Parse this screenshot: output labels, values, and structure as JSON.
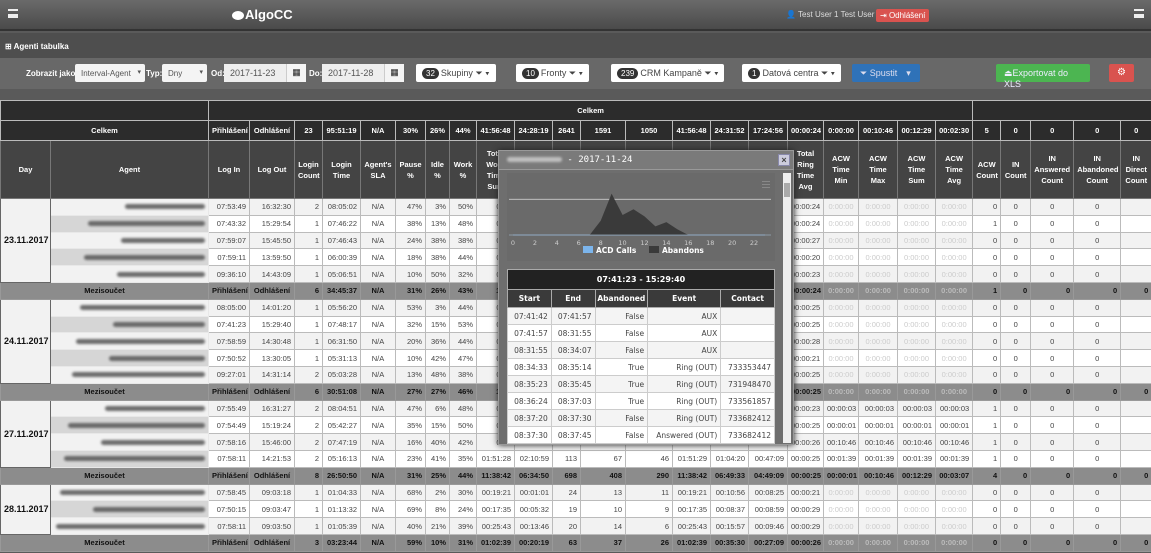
{
  "app": {
    "brand": "AlgoCC",
    "user": "Test User 1 Test User 1",
    "logout_label": "Odhlášení",
    "section_title": "Agenti tabulka"
  },
  "toolbar": {
    "display_as_label": "Zobrazit jako:",
    "display_as_value": "Interval-Agent",
    "type_label": "Typ:",
    "type_value": "Dny",
    "from_label": "Od:",
    "from_value": "2017-11-23",
    "to_label": "Do:",
    "to_value": "2017-11-28",
    "groups": {
      "count": "32",
      "label": "Skupiny"
    },
    "queues": {
      "count": "10",
      "label": "Fronty"
    },
    "crm": {
      "count": "239",
      "label": "CRM Kampaně"
    },
    "datacenters": {
      "count": "1",
      "label": "Datová centra"
    },
    "run_label": "Spustit",
    "export_label": "Exportovat do XLS",
    "colors": {
      "run": "#2f72b8",
      "export": "#4cb551",
      "danger": "#d9534f"
    }
  },
  "table": {
    "top_header": "Celkem",
    "totals_label": "Celkem",
    "totals": [
      "Přihlášení",
      "Odhlášení",
      "23",
      "95:51:19",
      "N/A",
      "30%",
      "26%",
      "44%",
      "41:56:48",
      "24:28:19",
      "2641",
      "1591",
      "1050",
      "41:56:48",
      "24:31:52",
      "17:24:56",
      "00:00:24",
      "0:00:00",
      "00:10:46",
      "00:12:29",
      "00:02:30",
      "5",
      "0",
      "0",
      "0",
      "0"
    ],
    "columns": [
      "Day",
      "Agent",
      "Log In",
      "Log Out",
      "Login Count",
      "Login Time",
      "Agent's SLA",
      "Pause %",
      "Idle %",
      "Work %",
      "Total Work Time Sum",
      "",
      "",
      "",
      "",
      "",
      "",
      "",
      "Total Ring Time Avg",
      "ACW Time Min",
      "ACW Time Max",
      "ACW Time Sum",
      "ACW Time Avg",
      "ACW Count",
      "IN Count",
      "IN Answered Count",
      "IN Abandoned Count",
      "IN Direct Count"
    ],
    "days": [
      {
        "date": "23.11.2017",
        "rows": [
          [
            "07:53:49",
            "16:32:30",
            "2",
            "08:05:02",
            "N/A",
            "47%",
            "3%",
            "50%",
            "04:0",
            "",
            "",
            "",
            "",
            "",
            "",
            "",
            "00:00:24",
            "0:00:00",
            "0:00:00",
            "0:00:00",
            "0:00:00",
            "0",
            "0",
            "0",
            "0",
            ""
          ],
          [
            "07:43:32",
            "15:29:54",
            "1",
            "07:46:22",
            "N/A",
            "38%",
            "13%",
            "48%",
            "03:4",
            "",
            "",
            "",
            "",
            "",
            "",
            "",
            "00:00:24",
            "0:00:00",
            "0:00:00",
            "0:00:00",
            "0:00:00",
            "1",
            "0",
            "0",
            "0",
            ""
          ],
          [
            "07:59:07",
            "15:45:50",
            "1",
            "07:46:43",
            "N/A",
            "24%",
            "38%",
            "38%",
            "02:5",
            "",
            "",
            "",
            "",
            "",
            "",
            "",
            "00:00:27",
            "0:00:00",
            "0:00:00",
            "0:00:00",
            "0:00:00",
            "0",
            "0",
            "0",
            "0",
            ""
          ],
          [
            "07:59:11",
            "13:59:50",
            "1",
            "06:00:39",
            "N/A",
            "18%",
            "38%",
            "44%",
            "02:3",
            "",
            "",
            "",
            "",
            "",
            "",
            "",
            "00:00:20",
            "0:00:00",
            "0:00:00",
            "0:00:00",
            "0:00:00",
            "0",
            "0",
            "0",
            "0",
            ""
          ],
          [
            "09:36:10",
            "14:43:09",
            "1",
            "05:06:51",
            "N/A",
            "10%",
            "50%",
            "32%",
            "01:3",
            "",
            "",
            "",
            "",
            "",
            "",
            "",
            "00:00:23",
            "0:00:00",
            "0:00:00",
            "0:00:00",
            "0:00:00",
            "0",
            "0",
            "0",
            "0",
            ""
          ]
        ],
        "subtotal": {
          "label": "Mezisoučet",
          "values": [
            "Přihlášení",
            "Odhlášení",
            "6",
            "34:45:37",
            "N/A",
            "31%",
            "26%",
            "43%",
            "15:0",
            "",
            "",
            "",
            "",
            "",
            "",
            "",
            "00:00:24",
            "0:00:00",
            "0:00:00",
            "0:00:00",
            "0:00:00",
            "1",
            "0",
            "0",
            "0",
            "0"
          ]
        }
      },
      {
        "date": "24.11.2017",
        "rows": [
          [
            "08:05:00",
            "14:01:20",
            "1",
            "05:56:20",
            "N/A",
            "53%",
            "3%",
            "44%",
            "02:3",
            "",
            "",
            "",
            "",
            "",
            "",
            "",
            "00:00:25",
            "0:00:00",
            "0:00:00",
            "0:00:00",
            "0:00:00",
            "0",
            "0",
            "0",
            "0",
            ""
          ],
          [
            "07:41:23",
            "15:29:40",
            "1",
            "07:48:17",
            "N/A",
            "32%",
            "15%",
            "53%",
            "04:0",
            "",
            "",
            "",
            "",
            "",
            "",
            "",
            "00:00:25",
            "0:00:00",
            "0:00:00",
            "0:00:00",
            "0:00:00",
            "0",
            "0",
            "0",
            "0",
            ""
          ],
          [
            "07:58:59",
            "14:30:48",
            "1",
            "06:31:50",
            "N/A",
            "20%",
            "36%",
            "44%",
            "02:5",
            "",
            "",
            "",
            "",
            "",
            "",
            "",
            "00:00:28",
            "0:00:00",
            "0:00:00",
            "0:00:00",
            "0:00:00",
            "0",
            "0",
            "0",
            "0",
            ""
          ],
          [
            "07:50:52",
            "13:30:05",
            "1",
            "05:31:13",
            "N/A",
            "10%",
            "42%",
            "47%",
            "02:3",
            "",
            "",
            "",
            "",
            "",
            "",
            "",
            "00:00:21",
            "0:00:00",
            "0:00:00",
            "0:00:00",
            "0:00:00",
            "0",
            "0",
            "0",
            "0",
            ""
          ],
          [
            "09:27:01",
            "14:31:14",
            "2",
            "05:03:28",
            "N/A",
            "13%",
            "48%",
            "38%",
            "01:5",
            "",
            "",
            "",
            "",
            "",
            "",
            "",
            "00:00:25",
            "0:00:00",
            "0:00:00",
            "0:00:00",
            "0:00:00",
            "0",
            "0",
            "0",
            "0",
            ""
          ]
        ],
        "subtotal": {
          "label": "Mezisoučet",
          "values": [
            "Přihlášení",
            "Odhlášení",
            "6",
            "30:51:08",
            "N/A",
            "27%",
            "27%",
            "46%",
            "14:1",
            "",
            "",
            "",
            "",
            "",
            "",
            "",
            "00:00:25",
            "0:00:00",
            "0:00:00",
            "0:00:00",
            "0:00:00",
            "0",
            "0",
            "0",
            "0",
            "0"
          ]
        }
      },
      {
        "date": "27.11.2017",
        "rows": [
          [
            "07:55:49",
            "16:31:27",
            "2",
            "08:04:51",
            "N/A",
            "47%",
            "6%",
            "48%",
            "03:5",
            "",
            "",
            "",
            "",
            "",
            "",
            "",
            "00:00:23",
            "00:00:03",
            "00:00:03",
            "00:00:03",
            "00:00:03",
            "1",
            "0",
            "0",
            "0",
            ""
          ],
          [
            "07:54:49",
            "15:19:24",
            "2",
            "05:42:27",
            "N/A",
            "35%",
            "15%",
            "50%",
            "02:5",
            "",
            "",
            "",
            "",
            "",
            "",
            "",
            "00:00:25",
            "00:00:01",
            "00:00:01",
            "00:00:01",
            "00:00:01",
            "1",
            "0",
            "0",
            "0",
            ""
          ],
          [
            "07:58:16",
            "15:46:00",
            "2",
            "07:47:19",
            "N/A",
            "16%",
            "40%",
            "42%",
            "03:0",
            "",
            "",
            "",
            "",
            "",
            "",
            "",
            "00:00:26",
            "00:10:46",
            "00:10:46",
            "00:10:46",
            "00:10:46",
            "1",
            "0",
            "0",
            "0",
            ""
          ],
          [
            "07:58:11",
            "14:21:53",
            "2",
            "05:16:13",
            "N/A",
            "23%",
            "41%",
            "35%",
            "01:51:28",
            "02:10:59",
            "113",
            "67",
            "46",
            "01:51:29",
            "01:04:20",
            "00:47:09",
            "00:00:25",
            "00:01:39",
            "00:01:39",
            "00:01:39",
            "00:01:39",
            "1",
            "0",
            "0",
            "0",
            ""
          ]
        ],
        "subtotal": {
          "label": "Mezisoučet",
          "values": [
            "Přihlášení",
            "Odhlášení",
            "8",
            "26:50:50",
            "N/A",
            "31%",
            "25%",
            "44%",
            "11:38:42",
            "06:34:50",
            "698",
            "408",
            "290",
            "11:38:42",
            "06:49:33",
            "04:49:09",
            "00:00:25",
            "00:00:01",
            "00:10:46",
            "00:12:29",
            "00:03:07",
            "4",
            "0",
            "0",
            "0",
            "0"
          ]
        }
      },
      {
        "date": "28.11.2017",
        "rows": [
          [
            "07:58:45",
            "09:03:18",
            "1",
            "01:04:33",
            "N/A",
            "68%",
            "2%",
            "30%",
            "00:19:21",
            "00:01:01",
            "24",
            "13",
            "11",
            "00:19:21",
            "00:10:56",
            "00:08:25",
            "00:00:21",
            "0:00:00",
            "0:00:00",
            "0:00:00",
            "0:00:00",
            "0",
            "0",
            "0",
            "0",
            ""
          ],
          [
            "07:50:15",
            "09:03:47",
            "1",
            "01:13:32",
            "N/A",
            "69%",
            "8%",
            "24%",
            "00:17:35",
            "00:05:32",
            "19",
            "10",
            "9",
            "00:17:35",
            "00:08:37",
            "00:08:59",
            "00:00:29",
            "0:00:00",
            "0:00:00",
            "0:00:00",
            "0:00:00",
            "0",
            "0",
            "0",
            "0",
            ""
          ],
          [
            "07:58:11",
            "09:03:50",
            "1",
            "01:05:39",
            "N/A",
            "40%",
            "21%",
            "39%",
            "00:25:43",
            "00:13:46",
            "20",
            "14",
            "6",
            "00:25:43",
            "00:15:57",
            "00:09:46",
            "00:00:29",
            "0:00:00",
            "0:00:00",
            "0:00:00",
            "0:00:00",
            "0",
            "0",
            "0",
            "0",
            ""
          ]
        ],
        "subtotal": {
          "label": "Mezisoučet",
          "values": [
            "Přihlášení",
            "Odhlášení",
            "3",
            "03:23:44",
            "N/A",
            "59%",
            "10%",
            "31%",
            "01:02:39",
            "00:20:19",
            "63",
            "37",
            "26",
            "01:02:39",
            "00:35:30",
            "00:27:09",
            "00:00:26",
            "0:00:00",
            "0:00:00",
            "0:00:00",
            "0:00:00",
            "0",
            "0",
            "0",
            "0",
            "0"
          ]
        }
      }
    ]
  },
  "popup": {
    "title_suffix": "- 2017-11-24",
    "range": "07:41:23 - 15:29:40",
    "columns": [
      "Start",
      "End",
      "Abandoned",
      "Event",
      "Contact"
    ],
    "rows": [
      [
        "07:41:42",
        "07:41:57",
        "False",
        "AUX",
        ""
      ],
      [
        "07:41:57",
        "08:31:55",
        "False",
        "AUX",
        ""
      ],
      [
        "08:31:55",
        "08:34:07",
        "False",
        "AUX",
        ""
      ],
      [
        "08:34:33",
        "08:35:14",
        "True",
        "Ring (OUT)",
        "733353447"
      ],
      [
        "08:35:23",
        "08:35:45",
        "True",
        "Ring (OUT)",
        "731948470"
      ],
      [
        "08:36:24",
        "08:37:03",
        "True",
        "Ring (OUT)",
        "733561857"
      ],
      [
        "08:37:20",
        "08:37:30",
        "False",
        "Ring (OUT)",
        "733682412"
      ],
      [
        "08:37:30",
        "08:37:45",
        "False",
        "Answered (OUT)",
        "733682412"
      ]
    ]
  },
  "chart_data": {
    "type": "area",
    "x": [
      0,
      1,
      2,
      3,
      4,
      5,
      6,
      7,
      8,
      9,
      10,
      11,
      12,
      13,
      14,
      15,
      16,
      17,
      18,
      19,
      20,
      21,
      22,
      23
    ],
    "x_ticks": [
      "0",
      "2",
      "4",
      "6",
      "8",
      "10",
      "12",
      "14",
      "16",
      "18",
      "20",
      "22"
    ],
    "series": [
      {
        "name": "ACD Calls",
        "color": "#7cb5ec",
        "values": [
          0,
          0,
          0,
          0,
          0,
          0,
          0,
          0,
          0,
          0,
          0,
          0,
          0,
          0,
          0,
          0,
          0,
          0,
          0,
          0,
          0,
          0,
          0,
          0
        ]
      },
      {
        "name": "Abandons",
        "color": "#3a3a3a",
        "values": [
          0,
          0,
          0,
          0,
          0,
          0,
          0,
          0,
          2,
          5.8,
          2.8,
          3.6,
          2.6,
          1.2,
          1.8,
          0.8,
          0,
          0,
          0,
          0,
          0,
          0,
          0,
          0
        ]
      }
    ],
    "legend": "bottom",
    "grid": true
  }
}
